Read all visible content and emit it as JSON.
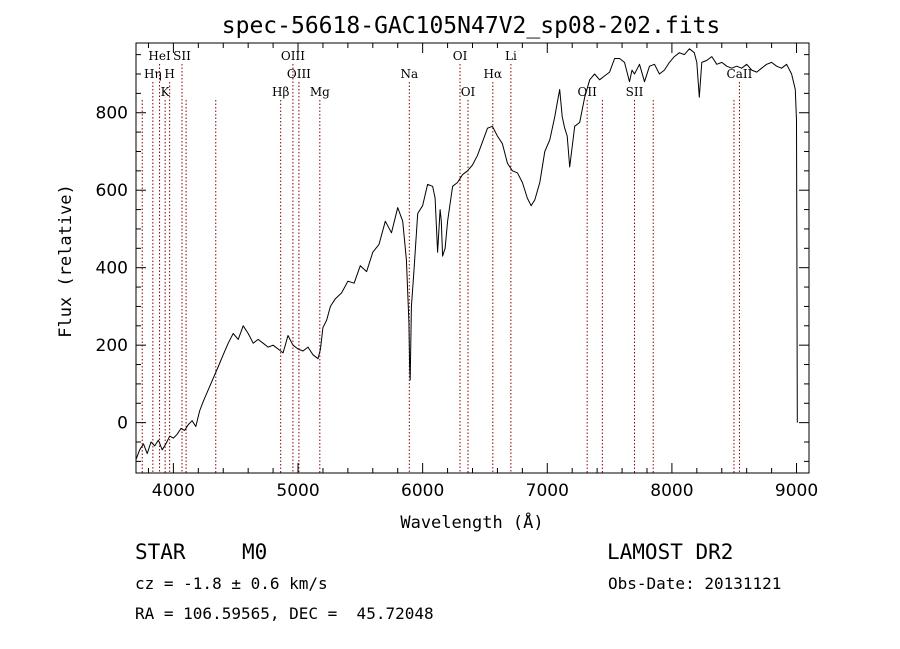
{
  "chart_data": {
    "type": "line",
    "title": "spec-56618-GAC105N47V2_sp08-202.fits",
    "xlabel": "Wavelength (Å)",
    "ylabel": "Flux (relative)",
    "xlim": [
      3700,
      9100
    ],
    "ylim": [
      -130,
      980
    ],
    "x_ticks": [
      4000,
      5000,
      6000,
      7000,
      8000,
      9000
    ],
    "y_ticks": [
      0,
      200,
      400,
      600,
      800
    ],
    "grid": false,
    "line_color": "#000000",
    "marker_color": "#8b0000",
    "series": [
      {
        "x": [
          3700,
          3730,
          3760,
          3790,
          3820,
          3850,
          3880,
          3910,
          3940,
          3970,
          4000,
          4030,
          4060,
          4090,
          4120,
          4150,
          4180,
          4210,
          4240,
          4280,
          4320,
          4360,
          4400,
          4440,
          4480,
          4520,
          4560,
          4600,
          4640,
          4680,
          4720,
          4760,
          4800,
          4840,
          4880,
          4920,
          4960,
          5000,
          5040,
          5080,
          5120,
          5160,
          5180,
          5200,
          5230,
          5260,
          5300,
          5350,
          5400,
          5450,
          5500,
          5550,
          5600,
          5650,
          5700,
          5750,
          5800,
          5840,
          5870,
          5890,
          5895,
          5900,
          5910,
          5930,
          5960,
          6000,
          6040,
          6080,
          6100,
          6120,
          6140,
          6150,
          6160,
          6180,
          6200,
          6240,
          6280,
          6320,
          6360,
          6400,
          6440,
          6480,
          6520,
          6560,
          6600,
          6640,
          6680,
          6720,
          6760,
          6800,
          6840,
          6870,
          6900,
          6940,
          6980,
          7020,
          7060,
          7080,
          7100,
          7120,
          7140,
          7160,
          7180,
          7220,
          7260,
          7300,
          7340,
          7380,
          7420,
          7460,
          7500,
          7540,
          7580,
          7620,
          7660,
          7680,
          7700,
          7740,
          7780,
          7820,
          7860,
          7900,
          7940,
          7980,
          8020,
          8060,
          8100,
          8140,
          8180,
          8200,
          8220,
          8240,
          8280,
          8320,
          8360,
          8400,
          8440,
          8480,
          8520,
          8560,
          8600,
          8640,
          8680,
          8720,
          8760,
          8800,
          8840,
          8880,
          8920,
          8960,
          8990,
          9000,
          9003,
          9006
        ],
        "y": [
          -95,
          -70,
          -55,
          -80,
          -50,
          -60,
          -45,
          -70,
          -55,
          -35,
          -40,
          -30,
          -15,
          -20,
          -5,
          5,
          -10,
          30,
          55,
          85,
          115,
          145,
          175,
          205,
          230,
          215,
          250,
          230,
          205,
          215,
          205,
          195,
          200,
          190,
          180,
          225,
          200,
          190,
          185,
          195,
          175,
          165,
          190,
          245,
          265,
          300,
          320,
          335,
          365,
          360,
          405,
          390,
          440,
          460,
          520,
          490,
          555,
          520,
          420,
          260,
          150,
          110,
          300,
          390,
          540,
          560,
          615,
          610,
          580,
          440,
          550,
          520,
          430,
          450,
          520,
          610,
          620,
          640,
          650,
          665,
          690,
          725,
          760,
          765,
          740,
          720,
          670,
          650,
          645,
          620,
          580,
          560,
          575,
          620,
          700,
          730,
          790,
          825,
          860,
          790,
          760,
          740,
          660,
          765,
          775,
          840,
          885,
          900,
          885,
          895,
          905,
          940,
          940,
          930,
          880,
          910,
          900,
          925,
          880,
          920,
          925,
          900,
          910,
          930,
          945,
          955,
          950,
          965,
          955,
          930,
          840,
          930,
          935,
          945,
          925,
          930,
          920,
          915,
          920,
          915,
          925,
          910,
          905,
          915,
          925,
          930,
          920,
          915,
          925,
          900,
          860,
          780,
          420,
          0
        ]
      }
    ],
    "spectral_lines": [
      {
        "name": "HeI",
        "x": 3889,
        "label_row": 1
      },
      {
        "name": "SII",
        "x": 4069,
        "label_row": 1
      },
      {
        "name": "Hη",
        "x": 3835,
        "label_row": 2
      },
      {
        "name": "H",
        "x": 3970,
        "label_row": 2
      },
      {
        "name": "K",
        "x": 3934,
        "label_row": 3
      },
      {
        "name": "OIII",
        "x": 4959,
        "label_row": 1
      },
      {
        "name": "OIII",
        "x": 5007,
        "label_row": 2
      },
      {
        "name": "Hβ",
        "x": 4861,
        "label_row": 3
      },
      {
        "name": "Mg",
        "x": 5175,
        "label_row": 3
      },
      {
        "name": "Na",
        "x": 5893,
        "label_row": 2
      },
      {
        "name": "OI",
        "x": 6300,
        "label_row": 1
      },
      {
        "name": "OI",
        "x": 6364,
        "label_row": 3
      },
      {
        "name": "Hα",
        "x": 6563,
        "label_row": 2
      },
      {
        "name": "Li",
        "x": 6708,
        "label_row": 1
      },
      {
        "name": "OII",
        "x": 7320,
        "label_row": 3
      },
      {
        "name": "SII",
        "x": 7700,
        "label_row": 3
      },
      {
        "name": "CaII",
        "x": 8542,
        "label_row": 2
      }
    ],
    "extra_marker_x": [
      3750,
      4102,
      4340,
      7442,
      7850,
      8498
    ]
  },
  "footer": {
    "object_class": "STAR",
    "subclass": "M0",
    "survey": "LAMOST DR2",
    "redshift": "cz = -1.8 ± 0.6 km/s",
    "obs_date": "Obs-Date: 20131121",
    "coordinates": "RA = 106.59565, DEC =  45.72048"
  }
}
